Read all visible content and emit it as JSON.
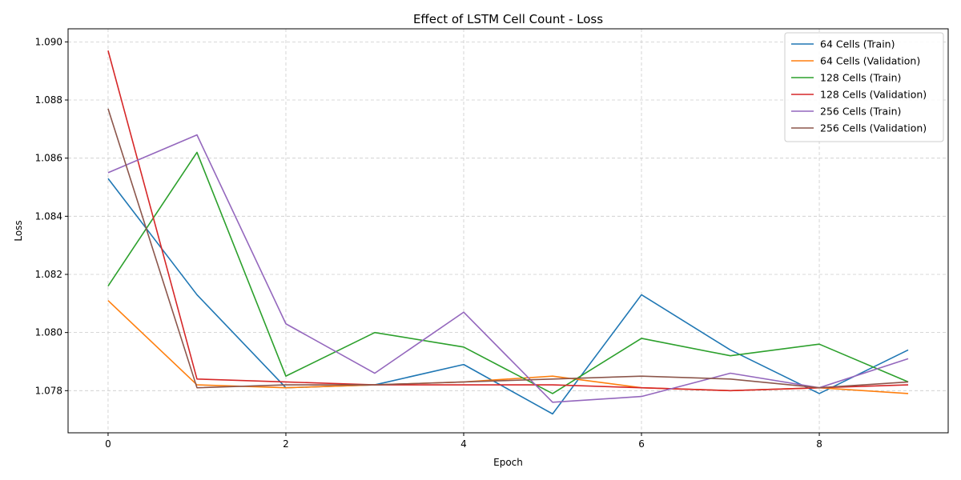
{
  "chart_data": {
    "type": "line",
    "title": "Effect of LSTM Cell Count - Loss",
    "xlabel": "Epoch",
    "ylabel": "Loss",
    "x": [
      0,
      1,
      2,
      3,
      4,
      5,
      6,
      7,
      8,
      9
    ],
    "xlim": [
      -0.45,
      9.45
    ],
    "ylim": [
      1.07655,
      1.09045
    ],
    "xticks": [
      0,
      2,
      4,
      6,
      8
    ],
    "xtick_labels": [
      "0",
      "2",
      "4",
      "6",
      "8"
    ],
    "yticks": [
      1.078,
      1.08,
      1.082,
      1.084,
      1.086,
      1.088,
      1.09
    ],
    "ytick_labels": [
      "1.078",
      "1.080",
      "1.082",
      "1.084",
      "1.086",
      "1.088",
      "1.090"
    ],
    "grid": true,
    "legend_position": "top-right",
    "series": [
      {
        "name": "64 Cells (Train)",
        "color": "#1f77b4",
        "values": [
          1.0853,
          1.0813,
          1.0781,
          1.0782,
          1.0789,
          1.0772,
          1.0813,
          1.0794,
          1.0779,
          1.0794
        ]
      },
      {
        "name": "64 Cells (Validation)",
        "color": "#ff7f0e",
        "values": [
          1.0811,
          1.0782,
          1.0781,
          1.0782,
          1.0783,
          1.0785,
          1.0781,
          1.078,
          1.0781,
          1.0779
        ]
      },
      {
        "name": "128 Cells (Train)",
        "color": "#2ca02c",
        "values": [
          1.0816,
          1.0862,
          1.0785,
          1.08,
          1.0795,
          1.0779,
          1.0798,
          1.0792,
          1.0796,
          1.0783
        ]
      },
      {
        "name": "128 Cells (Validation)",
        "color": "#d62728",
        "values": [
          1.0897,
          1.0784,
          1.0783,
          1.0782,
          1.0782,
          1.0782,
          1.0781,
          1.078,
          1.0781,
          1.0782
        ]
      },
      {
        "name": "256 Cells (Train)",
        "color": "#9467bd",
        "values": [
          1.0855,
          1.0868,
          1.0803,
          1.0786,
          1.0807,
          1.0776,
          1.0778,
          1.0786,
          1.0781,
          1.0791
        ]
      },
      {
        "name": "256 Cells (Validation)",
        "color": "#8c564b",
        "values": [
          1.0877,
          1.0781,
          1.0782,
          1.0782,
          1.0783,
          1.0784,
          1.0785,
          1.0784,
          1.0781,
          1.0783
        ]
      }
    ]
  }
}
